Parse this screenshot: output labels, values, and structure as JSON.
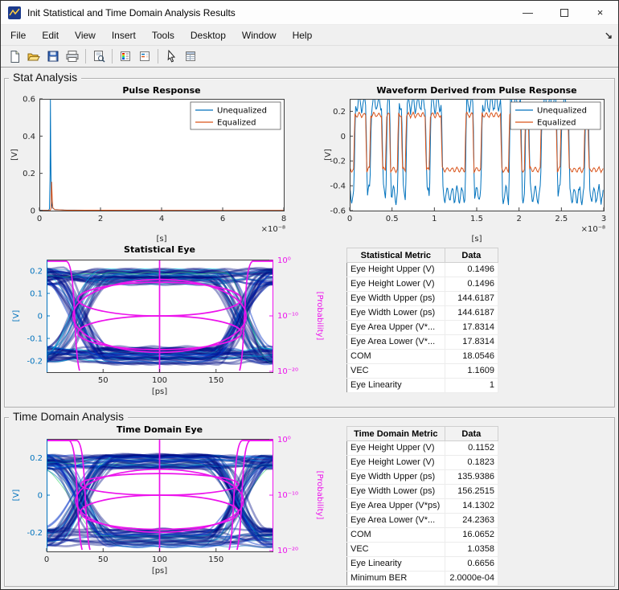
{
  "window": {
    "title": "Init Statistical and Time Domain Analysis Results",
    "controls": {
      "minimize": "—",
      "close": "×"
    },
    "dock_glyph": "↘"
  },
  "menu": {
    "items": [
      "File",
      "Edit",
      "View",
      "Insert",
      "Tools",
      "Desktop",
      "Window",
      "Help"
    ]
  },
  "toolbar": {
    "icons": [
      "new-document",
      "open-folder",
      "save",
      "print",
      "print-preview",
      "insert-colorbar",
      "insert-legend",
      "edit-plot",
      "property-inspector"
    ]
  },
  "sections": {
    "stat_label": "Stat Analysis",
    "time_label": "Time Domain Analysis"
  },
  "colors": {
    "unequalized": "#0072BD",
    "equalized": "#D95319",
    "probability": "#EC13EC",
    "eye_left_axis": "#0072BD",
    "density_base": "#000D85"
  },
  "chart_data": [
    {
      "id": "pulse_response",
      "type": "line",
      "title": "Pulse Response",
      "xlabel": "[s]",
      "ylabel": "[V]",
      "x_scale_label": "×10⁻⁸",
      "xlim": [
        0,
        8
      ],
      "ylim": [
        0,
        0.6
      ],
      "xticks": [
        0,
        2,
        4,
        6,
        8
      ],
      "yticks": [
        0,
        0.2,
        0.4,
        0.6
      ],
      "legend": [
        "Unequalized",
        "Equalized"
      ],
      "legend_pos": "top-right",
      "series": [
        {
          "name": "Unequalized",
          "color": "#0072BD",
          "points": [
            [
              0,
              0.002
            ],
            [
              0.3,
              0.002
            ],
            [
              0.33,
              0.01
            ],
            [
              0.35,
              0.2
            ],
            [
              0.36,
              0.6
            ],
            [
              0.37,
              0.32
            ],
            [
              0.39,
              0.05
            ],
            [
              0.42,
              0.015
            ],
            [
              0.5,
              0.006
            ],
            [
              0.8,
              0.003
            ],
            [
              1.5,
              0.002
            ],
            [
              3,
              0.001
            ],
            [
              8,
              0.001
            ]
          ]
        },
        {
          "name": "Equalized",
          "color": "#D95319",
          "points": [
            [
              0,
              0.001
            ],
            [
              0.35,
              0.001
            ],
            [
              0.38,
              0.01
            ],
            [
              0.4,
              0.155
            ],
            [
              0.42,
              0.06
            ],
            [
              0.44,
              0.015
            ],
            [
              0.5,
              0.005
            ],
            [
              0.9,
              0.002
            ],
            [
              8,
              0.001
            ]
          ]
        }
      ]
    },
    {
      "id": "waveform",
      "type": "line",
      "title": "Waveform Derived from Pulse Response",
      "xlabel": "[s]",
      "ylabel": "[V]",
      "x_scale_label": "×10⁻⁸",
      "xlim": [
        0,
        3
      ],
      "ylim": [
        -0.6,
        0.3
      ],
      "xticks": [
        0,
        0.5,
        1,
        1.5,
        2,
        2.5,
        3
      ],
      "yticks": [
        -0.6,
        -0.4,
        -0.2,
        0,
        0.2
      ],
      "legend": [
        "Unequalized",
        "Equalized"
      ],
      "legend_pos": "top-right",
      "series": [
        {
          "name": "Unequalized",
          "color": "#0072BD",
          "generate": {
            "seed": 9,
            "bits": 64,
            "high": 0.26,
            "low": -0.47,
            "trans": 0.55,
            "ripple": 0.09
          }
        },
        {
          "name": "Equalized",
          "color": "#D95319",
          "generate": {
            "seed": 9,
            "bits": 64,
            "high": 0.17,
            "low": -0.27,
            "trans": 0.3,
            "ripple": 0.025
          }
        }
      ]
    },
    {
      "id": "statistical_eye",
      "type": "eye",
      "title": "Statistical Eye",
      "xlabel": "[ps]",
      "ylabel_left": "[V]",
      "ylabel_right": "[Probability]",
      "xlim": [
        0,
        200
      ],
      "ylim": [
        -0.25,
        0.25
      ],
      "xticks": [
        50,
        100,
        150
      ],
      "yticks": [
        -0.2,
        -0.1,
        0,
        0.1,
        0.2
      ],
      "right_ticks": [
        "10⁰",
        "10⁻¹⁰",
        "10⁻²⁰"
      ],
      "left_color": "#0072BD",
      "eye": {
        "seed": 11,
        "trace_amp": 0.168,
        "upper_scale": 1,
        "lower_scale": 1,
        "center_ps": 100,
        "crossing_left_ps": 27.7,
        "crossing_right_ps": 172.3,
        "lobes": [
          {
            "cy": 0.0748,
            "ry": 0.0748
          },
          {
            "cy": -0.0748,
            "ry": 0.0748
          },
          {
            "cy": 0,
            "ry": 0.162,
            "rxf": 1.06
          }
        ],
        "bathtub_offsets": [
          0
        ]
      },
      "metrics": {
        "eye_height_upper_v": 0.1496,
        "eye_height_lower_v": 0.1496,
        "eye_width_ps": 144.6187
      }
    },
    {
      "id": "time_domain_eye",
      "type": "eye",
      "title": "Time Domain Eye",
      "xlabel": "[ps]",
      "ylabel_left": "[V]",
      "ylabel_right": "[Probability]",
      "xlim": [
        0,
        200
      ],
      "ylim": [
        -0.3,
        0.3
      ],
      "xticks": [
        0,
        50,
        100,
        150
      ],
      "yticks": [
        -0.2,
        0,
        0.2
      ],
      "right_ticks": [
        "10⁰",
        "10⁻¹⁰",
        "10⁻²⁰"
      ],
      "left_color": "#0072BD",
      "eye": {
        "seed": 23,
        "trace_amp": 0.185,
        "upper_scale": 0.92,
        "lower_scale": 1.18,
        "center_ps": 100,
        "crossing_left_ps": 30,
        "crossing_right_ps": 170,
        "lobes": [
          {
            "cy": 0.0576,
            "ry": 0.0576
          },
          {
            "cy": -0.0912,
            "ry": 0.0912
          },
          {
            "cy": -0.03,
            "ry": 0.168,
            "rxf": 1.06
          }
        ],
        "bathtub_offsets": [
          0,
          7
        ]
      },
      "metrics": {
        "eye_height_upper_v": 0.1152,
        "eye_height_lower_v": 0.1823,
        "eye_width_upper_ps": 135.9386,
        "eye_width_lower_ps": 156.2515
      }
    }
  ],
  "tables": {
    "stat": {
      "headers": [
        "Statistical Metric",
        "Data"
      ],
      "rows": [
        [
          "Eye Height Upper (V)",
          "0.1496"
        ],
        [
          "Eye Height Lower (V)",
          "0.1496"
        ],
        [
          "Eye Width Upper (ps)",
          "144.6187"
        ],
        [
          "Eye Width Lower (ps)",
          "144.6187"
        ],
        [
          "Eye Area Upper (V*...",
          "17.8314"
        ],
        [
          "Eye Area Lower (V*...",
          "17.8314"
        ],
        [
          "COM",
          "18.0546"
        ],
        [
          "VEC",
          "1.1609"
        ],
        [
          "Eye Linearity",
          "1"
        ]
      ]
    },
    "time": {
      "headers": [
        "Time Domain Metric",
        "Data"
      ],
      "rows": [
        [
          "Eye Height Upper (V)",
          "0.1152"
        ],
        [
          "Eye Height Lower (V)",
          "0.1823"
        ],
        [
          "Eye Width Upper (ps)",
          "135.9386"
        ],
        [
          "Eye Width Lower (ps)",
          "156.2515"
        ],
        [
          "Eye Area Upper (V*ps)",
          "14.1302"
        ],
        [
          "Eye Area Lower (V*...",
          "24.2363"
        ],
        [
          "COM",
          "16.0652"
        ],
        [
          "VEC",
          "1.0358"
        ],
        [
          "Eye Linearity",
          "0.6656"
        ],
        [
          "Minimum BER",
          "2.0000e-04"
        ]
      ]
    }
  }
}
